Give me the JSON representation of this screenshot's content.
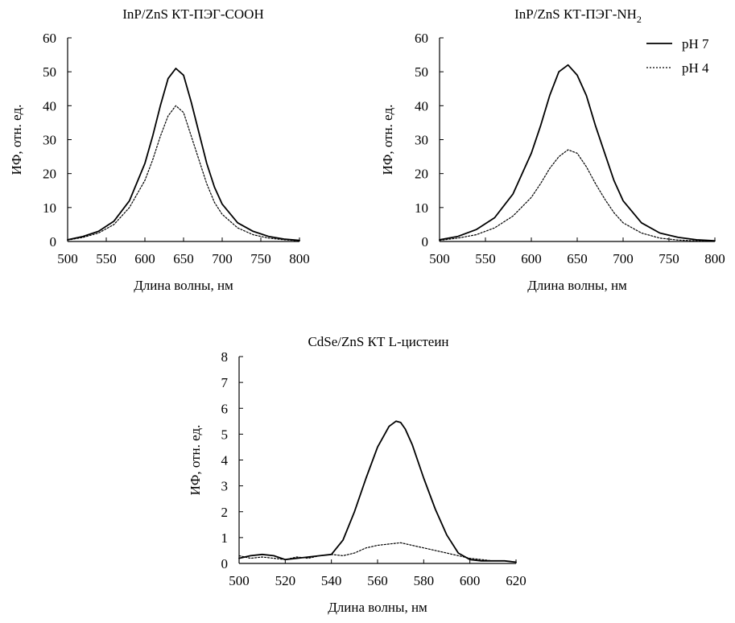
{
  "chart_data": [
    {
      "type": "line",
      "title": "InP/ZnS КТ-ПЭГ-COOH",
      "xlabel": "Длина волны, нм",
      "ylabel": "ИФ, отн. ед.",
      "xlim": [
        500,
        800
      ],
      "ylim": [
        0,
        60
      ],
      "xticks": [
        "500",
        "550",
        "600",
        "650",
        "700",
        "750",
        "800"
      ],
      "yticks": [
        "0",
        "10",
        "20",
        "30",
        "40",
        "50",
        "60"
      ],
      "grid": false,
      "series": [
        {
          "name": "pH 7",
          "style": "solid",
          "x": [
            500,
            520,
            540,
            560,
            580,
            600,
            610,
            620,
            630,
            640,
            650,
            660,
            670,
            680,
            690,
            700,
            720,
            740,
            760,
            780,
            800
          ],
          "y": [
            0.5,
            1.5,
            3,
            6,
            12,
            23,
            31,
            40,
            48,
            51,
            49,
            41,
            32,
            23,
            16,
            11,
            5.5,
            3,
            1.5,
            0.7,
            0.3
          ]
        },
        {
          "name": "pH 4",
          "style": "dotted",
          "x": [
            500,
            520,
            540,
            560,
            580,
            600,
            610,
            620,
            630,
            640,
            650,
            660,
            670,
            680,
            690,
            700,
            720,
            740,
            760,
            780,
            800
          ],
          "y": [
            0.4,
            1.2,
            2.5,
            5,
            10,
            18,
            24,
            31,
            37,
            40,
            38,
            31,
            24,
            17,
            11.5,
            8,
            4,
            2,
            1,
            0.5,
            0.2
          ]
        }
      ]
    },
    {
      "type": "line",
      "title": "InP/ZnS КТ-ПЭГ-NH",
      "title_sub": "2",
      "xlabel": "Длина волны, нм",
      "ylabel": "ИФ, отн. ед.",
      "xlim": [
        500,
        800
      ],
      "ylim": [
        0,
        60
      ],
      "xticks": [
        "500",
        "550",
        "600",
        "650",
        "700",
        "750",
        "800"
      ],
      "yticks": [
        "0",
        "10",
        "20",
        "30",
        "40",
        "50",
        "60"
      ],
      "grid": false,
      "legend": {
        "position": "top-right"
      },
      "series": [
        {
          "name": "pH 7",
          "style": "solid",
          "x": [
            500,
            520,
            540,
            560,
            580,
            600,
            610,
            620,
            630,
            640,
            650,
            660,
            670,
            680,
            690,
            700,
            720,
            740,
            760,
            780,
            800
          ],
          "y": [
            0.5,
            1.5,
            3.5,
            7,
            14,
            26,
            34,
            43,
            50,
            52,
            49,
            43,
            34,
            26,
            18,
            12,
            5.5,
            2.5,
            1.2,
            0.5,
            0.2
          ]
        },
        {
          "name": "pH 4",
          "style": "dotted",
          "x": [
            500,
            520,
            540,
            560,
            580,
            600,
            610,
            620,
            630,
            640,
            650,
            660,
            670,
            680,
            690,
            700,
            720,
            740,
            760,
            780,
            800
          ],
          "y": [
            0.3,
            1,
            2,
            4,
            7.5,
            13,
            17,
            21.5,
            25,
            27,
            26,
            22,
            17,
            12.5,
            8.5,
            5.5,
            2.5,
            1,
            0.4,
            0.2,
            0.1
          ]
        }
      ]
    },
    {
      "type": "line",
      "title": "CdSe/ZnS КТ L-цистеин",
      "xlabel": "Длина волны, нм",
      "ylabel": "ИФ, отн. ед.",
      "xlim": [
        500,
        620
      ],
      "ylim": [
        0,
        8
      ],
      "xticks": [
        "500",
        "520",
        "540",
        "560",
        "580",
        "600",
        "620"
      ],
      "yticks": [
        "0",
        "1",
        "2",
        "3",
        "4",
        "5",
        "6",
        "7",
        "8"
      ],
      "grid": false,
      "series": [
        {
          "name": "pH 7",
          "style": "solid",
          "x": [
            500,
            505,
            510,
            515,
            520,
            525,
            530,
            535,
            540,
            545,
            550,
            555,
            560,
            565,
            568,
            570,
            572,
            575,
            580,
            585,
            590,
            595,
            600,
            605,
            610,
            615,
            620
          ],
          "y": [
            0.2,
            0.3,
            0.35,
            0.3,
            0.15,
            0.2,
            0.25,
            0.3,
            0.35,
            0.9,
            2.0,
            3.3,
            4.5,
            5.3,
            5.5,
            5.45,
            5.2,
            4.6,
            3.3,
            2.1,
            1.1,
            0.4,
            0.15,
            0.1,
            0.1,
            0.1,
            0.05
          ]
        },
        {
          "name": "pH 4",
          "style": "dotted",
          "x": [
            500,
            505,
            510,
            515,
            520,
            525,
            530,
            535,
            540,
            545,
            550,
            555,
            560,
            565,
            570,
            575,
            580,
            585,
            590,
            595,
            600,
            605,
            610,
            615,
            620
          ],
          "y": [
            0.3,
            0.2,
            0.25,
            0.2,
            0.15,
            0.25,
            0.2,
            0.3,
            0.35,
            0.3,
            0.4,
            0.6,
            0.7,
            0.75,
            0.8,
            0.7,
            0.6,
            0.5,
            0.4,
            0.3,
            0.2,
            0.15,
            0.1,
            0.1,
            0.05
          ]
        }
      ]
    }
  ]
}
